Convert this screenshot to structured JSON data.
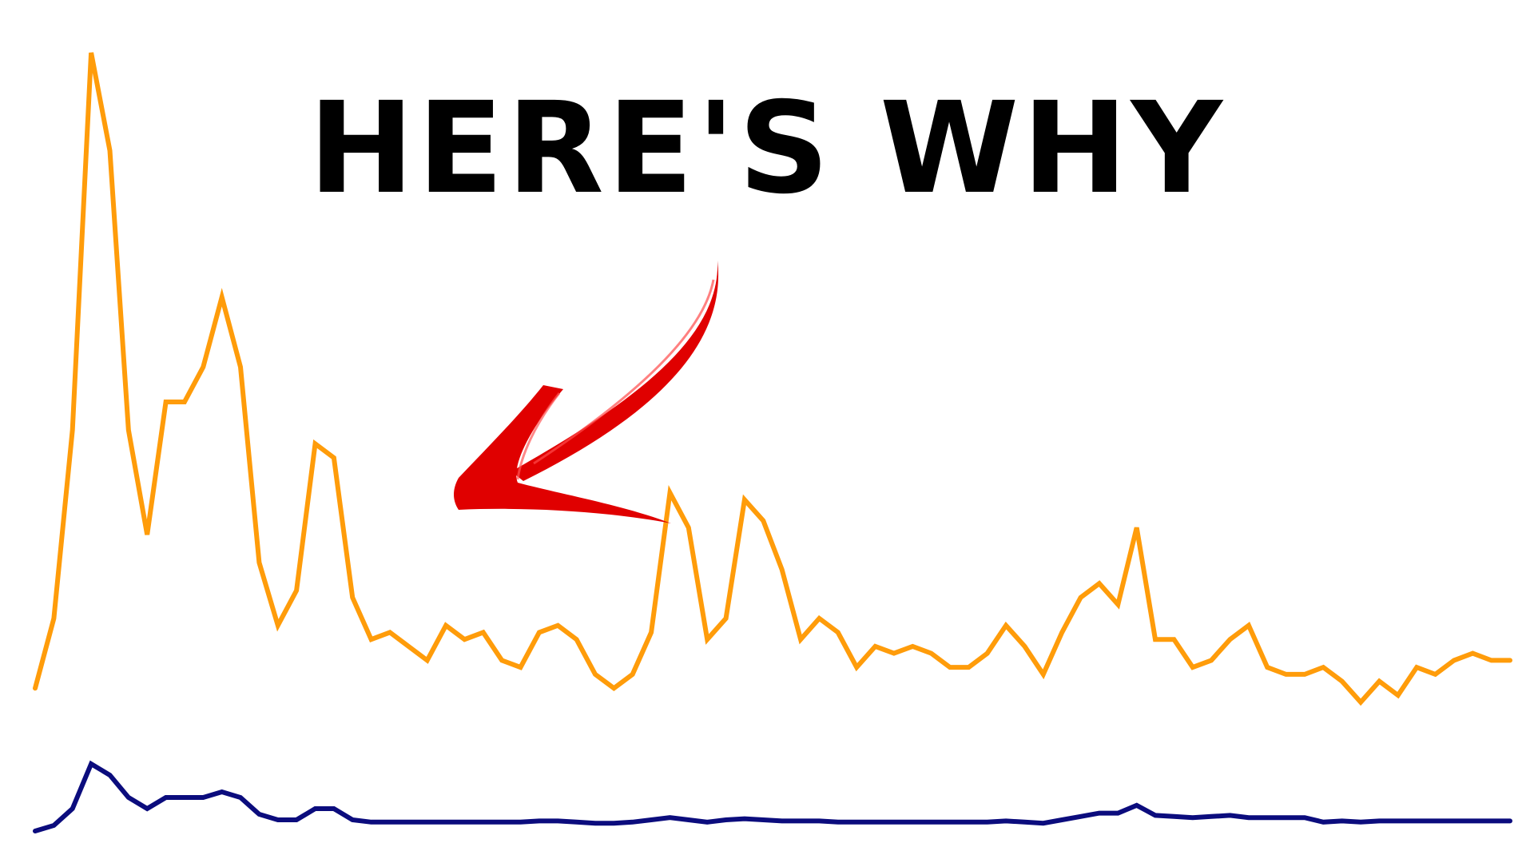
{
  "headline": "HERE'S WHY",
  "colors": {
    "background": "#ffffff",
    "headline": "#000000",
    "arrow": "#e00000",
    "series_primary": "#ff9c0a",
    "series_secondary": "#0b0c7d"
  },
  "annotation": {
    "shape": "brush-arrow",
    "points_toward": "second-peak"
  },
  "chart_data": {
    "type": "line",
    "title": "",
    "xlabel": "",
    "ylabel": "",
    "grid": false,
    "legend": "none",
    "ylim": [
      0,
      100
    ],
    "x": [
      0,
      1,
      2,
      3,
      4,
      5,
      6,
      7,
      8,
      9,
      10,
      11,
      12,
      13,
      14,
      15,
      16,
      17,
      18,
      19,
      20,
      21,
      22,
      23,
      24,
      25,
      26,
      27,
      28,
      29,
      30,
      31,
      32,
      33,
      34,
      35,
      36,
      37,
      38,
      39,
      40,
      41,
      42,
      43,
      44,
      45,
      46,
      47,
      48,
      49,
      50,
      51,
      52,
      53,
      54,
      55,
      56,
      57,
      58,
      59,
      60,
      61,
      62,
      63,
      64,
      65,
      66,
      67,
      67,
      68,
      69,
      70,
      71,
      72,
      73,
      74,
      75,
      76,
      77,
      78
    ],
    "series": [
      {
        "color": "#ff9c0a",
        "values": [
          9,
          19,
          46,
          100,
          86,
          46,
          31,
          50,
          50,
          55,
          65,
          55,
          27,
          18,
          23,
          44,
          42,
          22,
          16,
          17,
          15,
          13,
          18,
          16,
          17,
          13,
          12,
          17,
          18,
          16,
          11,
          9,
          11,
          17,
          37,
          32,
          16,
          19,
          36,
          33,
          26,
          16,
          19,
          17,
          12,
          15,
          14,
          15,
          14,
          12,
          12,
          14,
          18,
          15,
          11,
          17,
          22,
          24,
          21,
          32,
          16,
          16,
          12,
          13,
          16,
          18,
          12,
          11,
          11,
          12,
          10,
          7,
          10,
          8,
          12,
          11,
          13,
          14,
          13,
          13
        ]
      },
      {
        "color": "#0b0c7d",
        "values": [
          0,
          0.5,
          2,
          6,
          5,
          3,
          2,
          3,
          3,
          3,
          3.5,
          3,
          1.5,
          1,
          1,
          2,
          2,
          1,
          0.8,
          0.8,
          0.8,
          0.8,
          0.8,
          0.8,
          0.8,
          0.8,
          0.8,
          0.9,
          0.9,
          0.8,
          0.7,
          0.7,
          0.8,
          1,
          1.2,
          1,
          0.8,
          1,
          1.1,
          1,
          0.9,
          0.9,
          0.9,
          0.8,
          0.8,
          0.8,
          0.8,
          0.8,
          0.8,
          0.8,
          0.8,
          0.8,
          0.9,
          0.8,
          0.7,
          1,
          1.3,
          1.6,
          1.6,
          2.3,
          1.4,
          1.3,
          1.2,
          1.3,
          1.4,
          1.2,
          1.2,
          1.2,
          1.2,
          0.8,
          0.9,
          0.8,
          0.9,
          0.9,
          0.9,
          0.9,
          0.9,
          0.9,
          0.9,
          0.9
        ]
      }
    ]
  }
}
